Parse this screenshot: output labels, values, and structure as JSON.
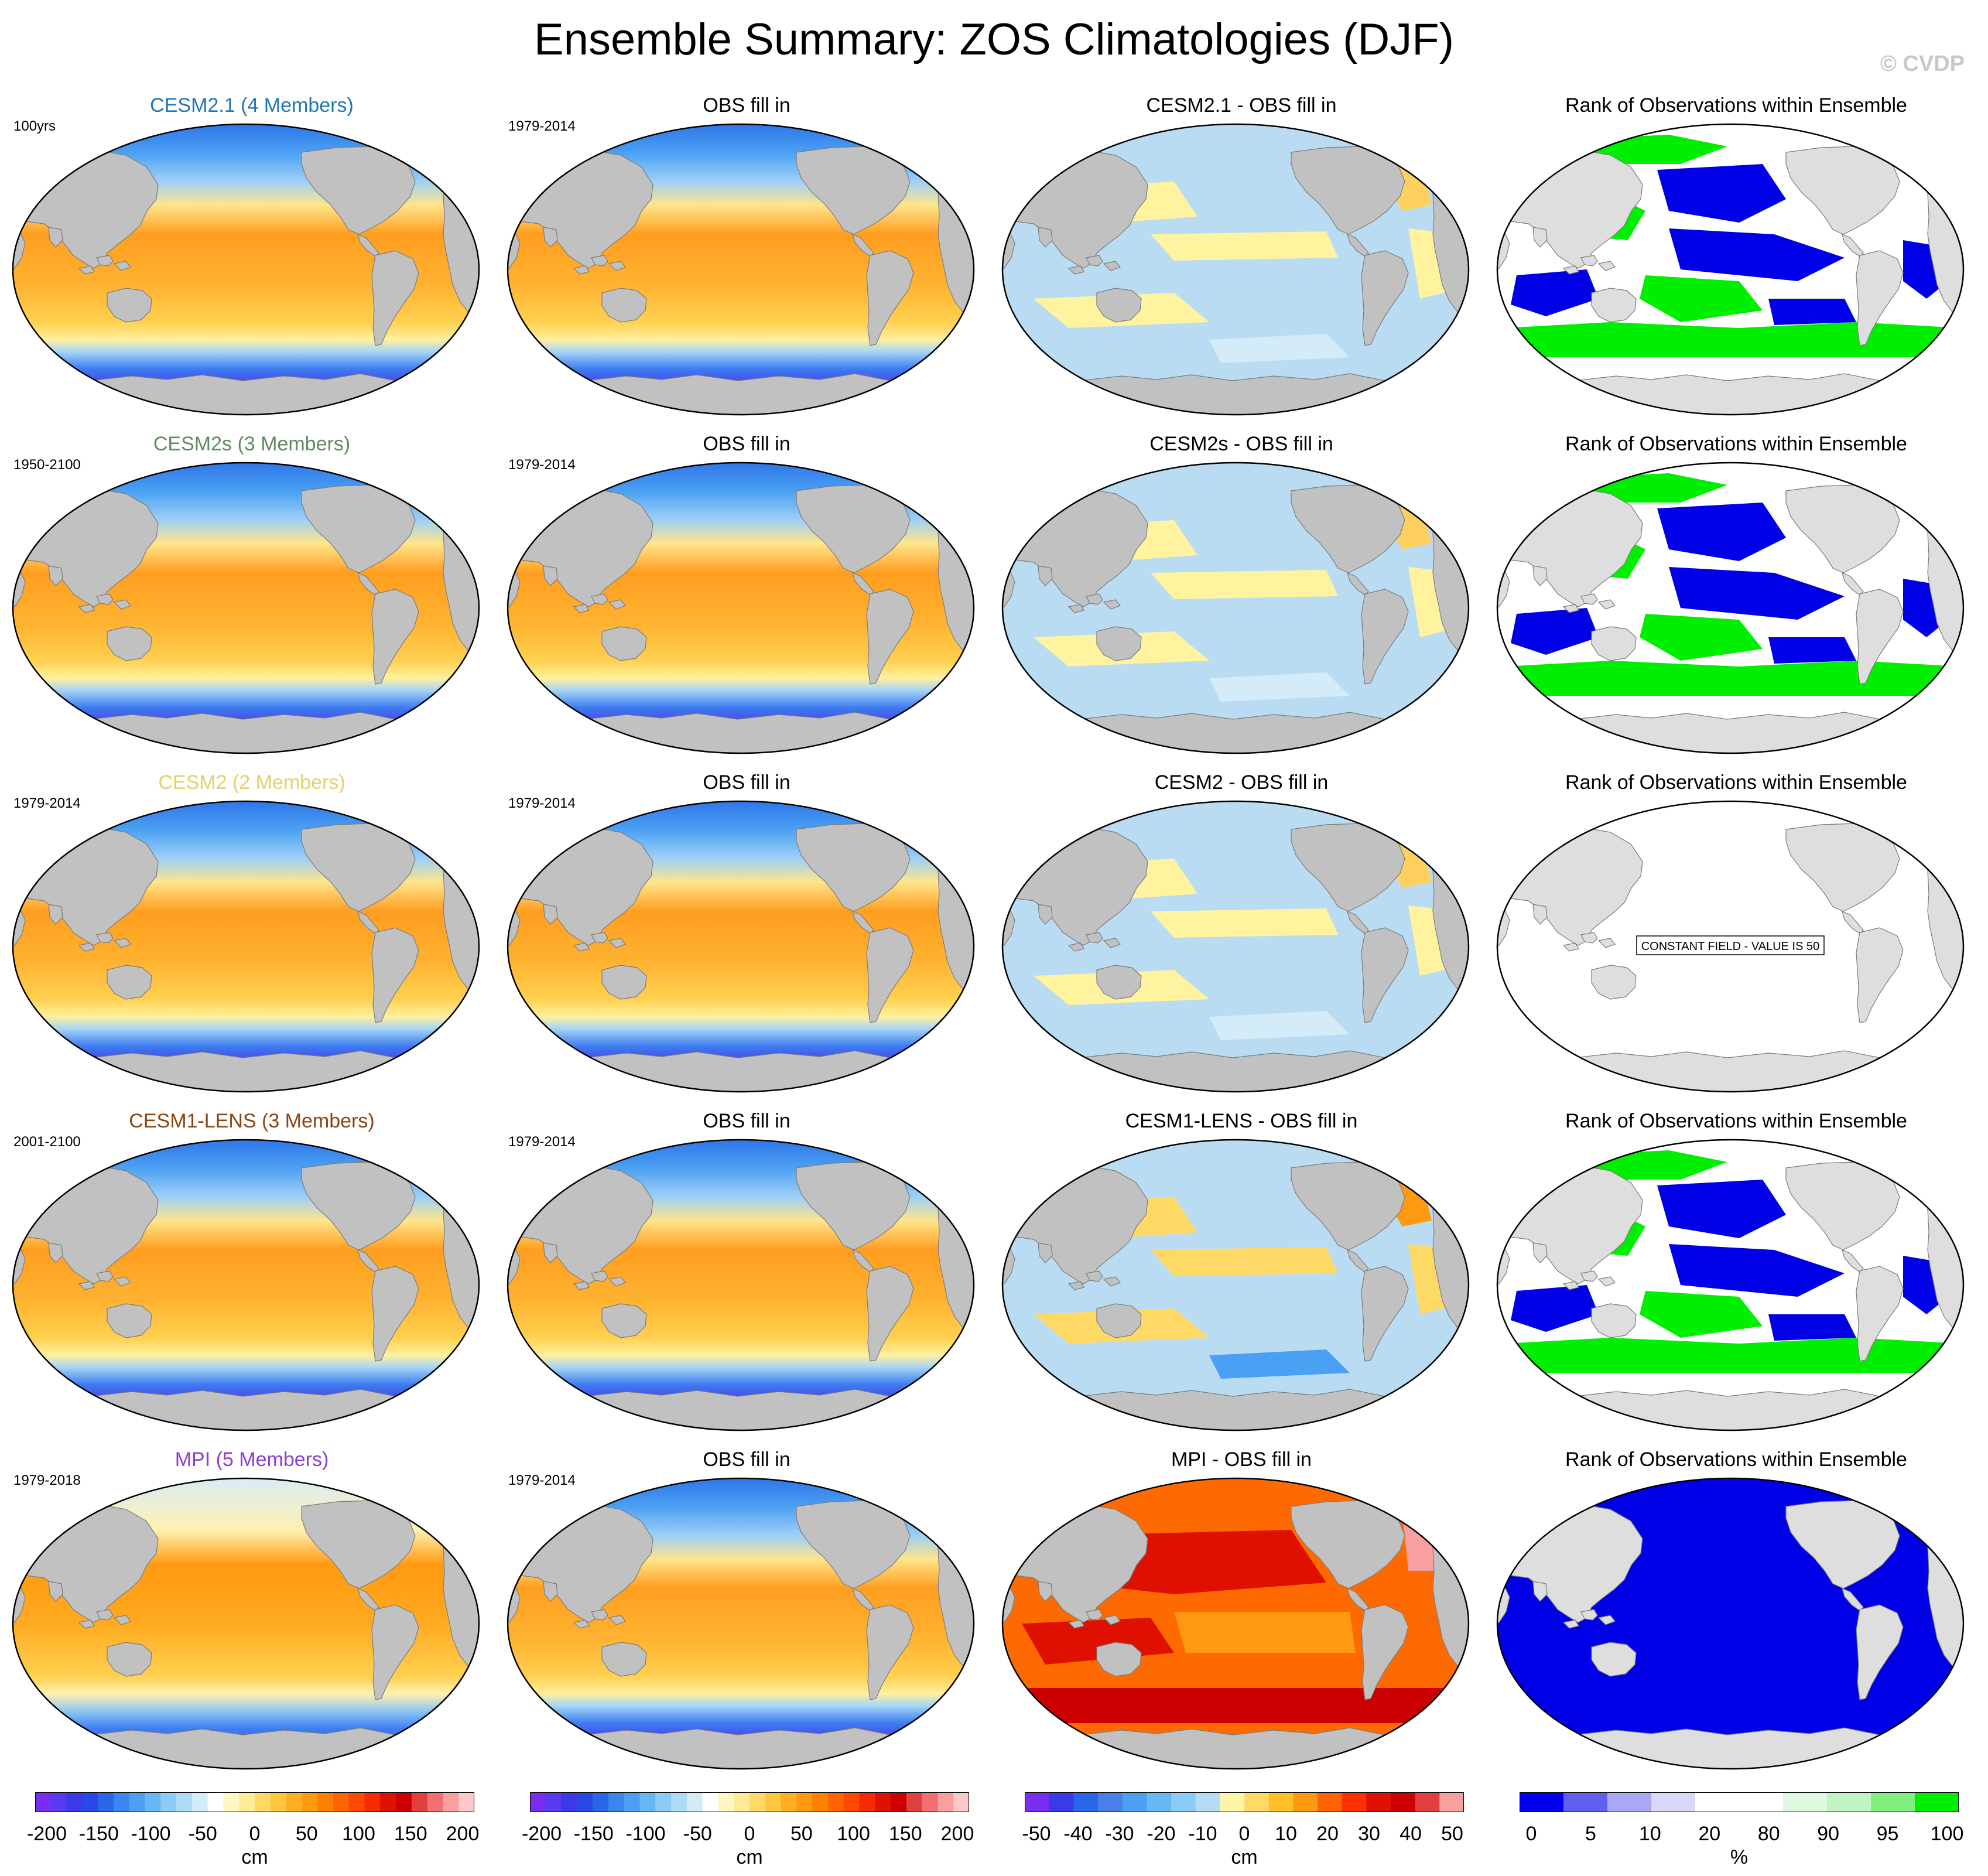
{
  "title": "Ensemble Summary: ZOS Climatologies (DJF)",
  "copyright": "© CVDP",
  "columns": [
    "model",
    "obs",
    "difference",
    "rank"
  ],
  "colors": {
    "land": "#c1c1c1",
    "land_light": "#dedede",
    "coast": "#7a7a7a",
    "ocean_warm": "#f6b33a",
    "ocean_cool": "#b9dcf3",
    "ocean_cold": "#4a55e6",
    "rank_low": "#0000e6",
    "rank_high": "#00ee00"
  },
  "rows": [
    {
      "model": {
        "title": "CESM2.1 (4 Members)",
        "title_color": "#1f77b4",
        "period": "100yrs"
      },
      "obs": {
        "title": "OBS fill in",
        "period": "1979-2014"
      },
      "diff": {
        "title": "CESM2.1 - OBS fill in",
        "style": "mild"
      },
      "rank": {
        "title": "Rank of Observations within Ensemble",
        "style": "mixed",
        "note": ""
      }
    },
    {
      "model": {
        "title": "CESM2s (3 Members)",
        "title_color": "#5f8a5f",
        "period": "1950-2100"
      },
      "obs": {
        "title": "OBS fill in",
        "period": "1979-2014"
      },
      "diff": {
        "title": "CESM2s - OBS fill in",
        "style": "mild"
      },
      "rank": {
        "title": "Rank of Observations within Ensemble",
        "style": "mixed",
        "note": ""
      }
    },
    {
      "model": {
        "title": "CESM2 (2 Members)",
        "title_color": "#e6cf6a",
        "period": "1979-2014"
      },
      "obs": {
        "title": "OBS fill in",
        "period": "1979-2014"
      },
      "diff": {
        "title": "CESM2 - OBS fill in",
        "style": "mild"
      },
      "rank": {
        "title": "Rank of Observations within Ensemble",
        "style": "constant",
        "note": "CONSTANT FIELD - VALUE IS 50"
      }
    },
    {
      "model": {
        "title": "CESM1-LENS (3 Members)",
        "title_color": "#8b4513",
        "period": "2001-2100"
      },
      "obs": {
        "title": "OBS fill in",
        "period": "1979-2014"
      },
      "diff": {
        "title": "CESM1-LENS - OBS fill in",
        "style": "moderate"
      },
      "rank": {
        "title": "Rank of Observations within Ensemble",
        "style": "mixed",
        "note": ""
      }
    },
    {
      "model": {
        "title": "MPI (5 Members)",
        "title_color": "#8a3fd1",
        "period": "1979-2018"
      },
      "obs": {
        "title": "OBS fill in",
        "period": "1979-2014"
      },
      "diff": {
        "title": "MPI - OBS fill in",
        "style": "hot"
      },
      "rank": {
        "title": "Rank of Observations within Ensemble",
        "style": "low",
        "note": ""
      }
    }
  ],
  "colorbars": [
    {
      "colors": [
        "#7a2df0",
        "#5a3af0",
        "#3a3ae8",
        "#2a48e8",
        "#2a66ea",
        "#3b85ef",
        "#4aa0f3",
        "#66b8f5",
        "#8ccbf6",
        "#b0dbf7",
        "#d4ebf8",
        "#ffffff",
        "#fff6c2",
        "#ffeb94",
        "#ffd966",
        "#ffc640",
        "#ffb020",
        "#ff9a10",
        "#ff8000",
        "#ff6400",
        "#ff4800",
        "#f52a00",
        "#e01000",
        "#cc0000",
        "#e04040",
        "#f07070",
        "#f8a0a0",
        "#fcc8c8"
      ],
      "ticks": [
        "-200",
        "-150",
        "-100",
        "-50",
        "0",
        "50",
        "100",
        "150",
        "200"
      ],
      "unit": "cm"
    },
    {
      "colors": [
        "#7a2df0",
        "#5a3af0",
        "#3a3ae8",
        "#2a48e8",
        "#2a66ea",
        "#3b85ef",
        "#4aa0f3",
        "#66b8f5",
        "#8ccbf6",
        "#b0dbf7",
        "#d4ebf8",
        "#ffffff",
        "#fff6c2",
        "#ffeb94",
        "#ffd966",
        "#ffc640",
        "#ffb020",
        "#ff9a10",
        "#ff8000",
        "#ff6400",
        "#ff4800",
        "#f52a00",
        "#e01000",
        "#cc0000",
        "#e04040",
        "#f07070",
        "#f8a0a0",
        "#fcc8c8"
      ],
      "ticks": [
        "-200",
        "-150",
        "-100",
        "-50",
        "0",
        "50",
        "100",
        "150",
        "200"
      ],
      "unit": "cm"
    },
    {
      "colors": [
        "#7a2df0",
        "#3a3ae8",
        "#2a66ea",
        "#4a7ee8",
        "#4aa0f3",
        "#66b8f5",
        "#8ccbf6",
        "#b6dcf3",
        "#fff5a8",
        "#ffd966",
        "#ffc02a",
        "#ff9a10",
        "#ff6400",
        "#ff3000",
        "#e01000",
        "#cc0000",
        "#e04040",
        "#f8a0a0"
      ],
      "ticks": [
        "-50",
        "-40",
        "-30",
        "-20",
        "-10",
        "0",
        "10",
        "20",
        "30",
        "40",
        "50"
      ],
      "unit": "cm"
    },
    {
      "colors": [
        "#0000ee",
        "#6060f0",
        "#a8a8f4",
        "#d8d8f8",
        "#ffffff",
        "#ffffff",
        "#e0f8e0",
        "#c0f4c0",
        "#80f080",
        "#00ee00"
      ],
      "ticks": [
        "0",
        "5",
        "10",
        "20",
        "80",
        "90",
        "95",
        "100"
      ],
      "unit": "%"
    }
  ]
}
